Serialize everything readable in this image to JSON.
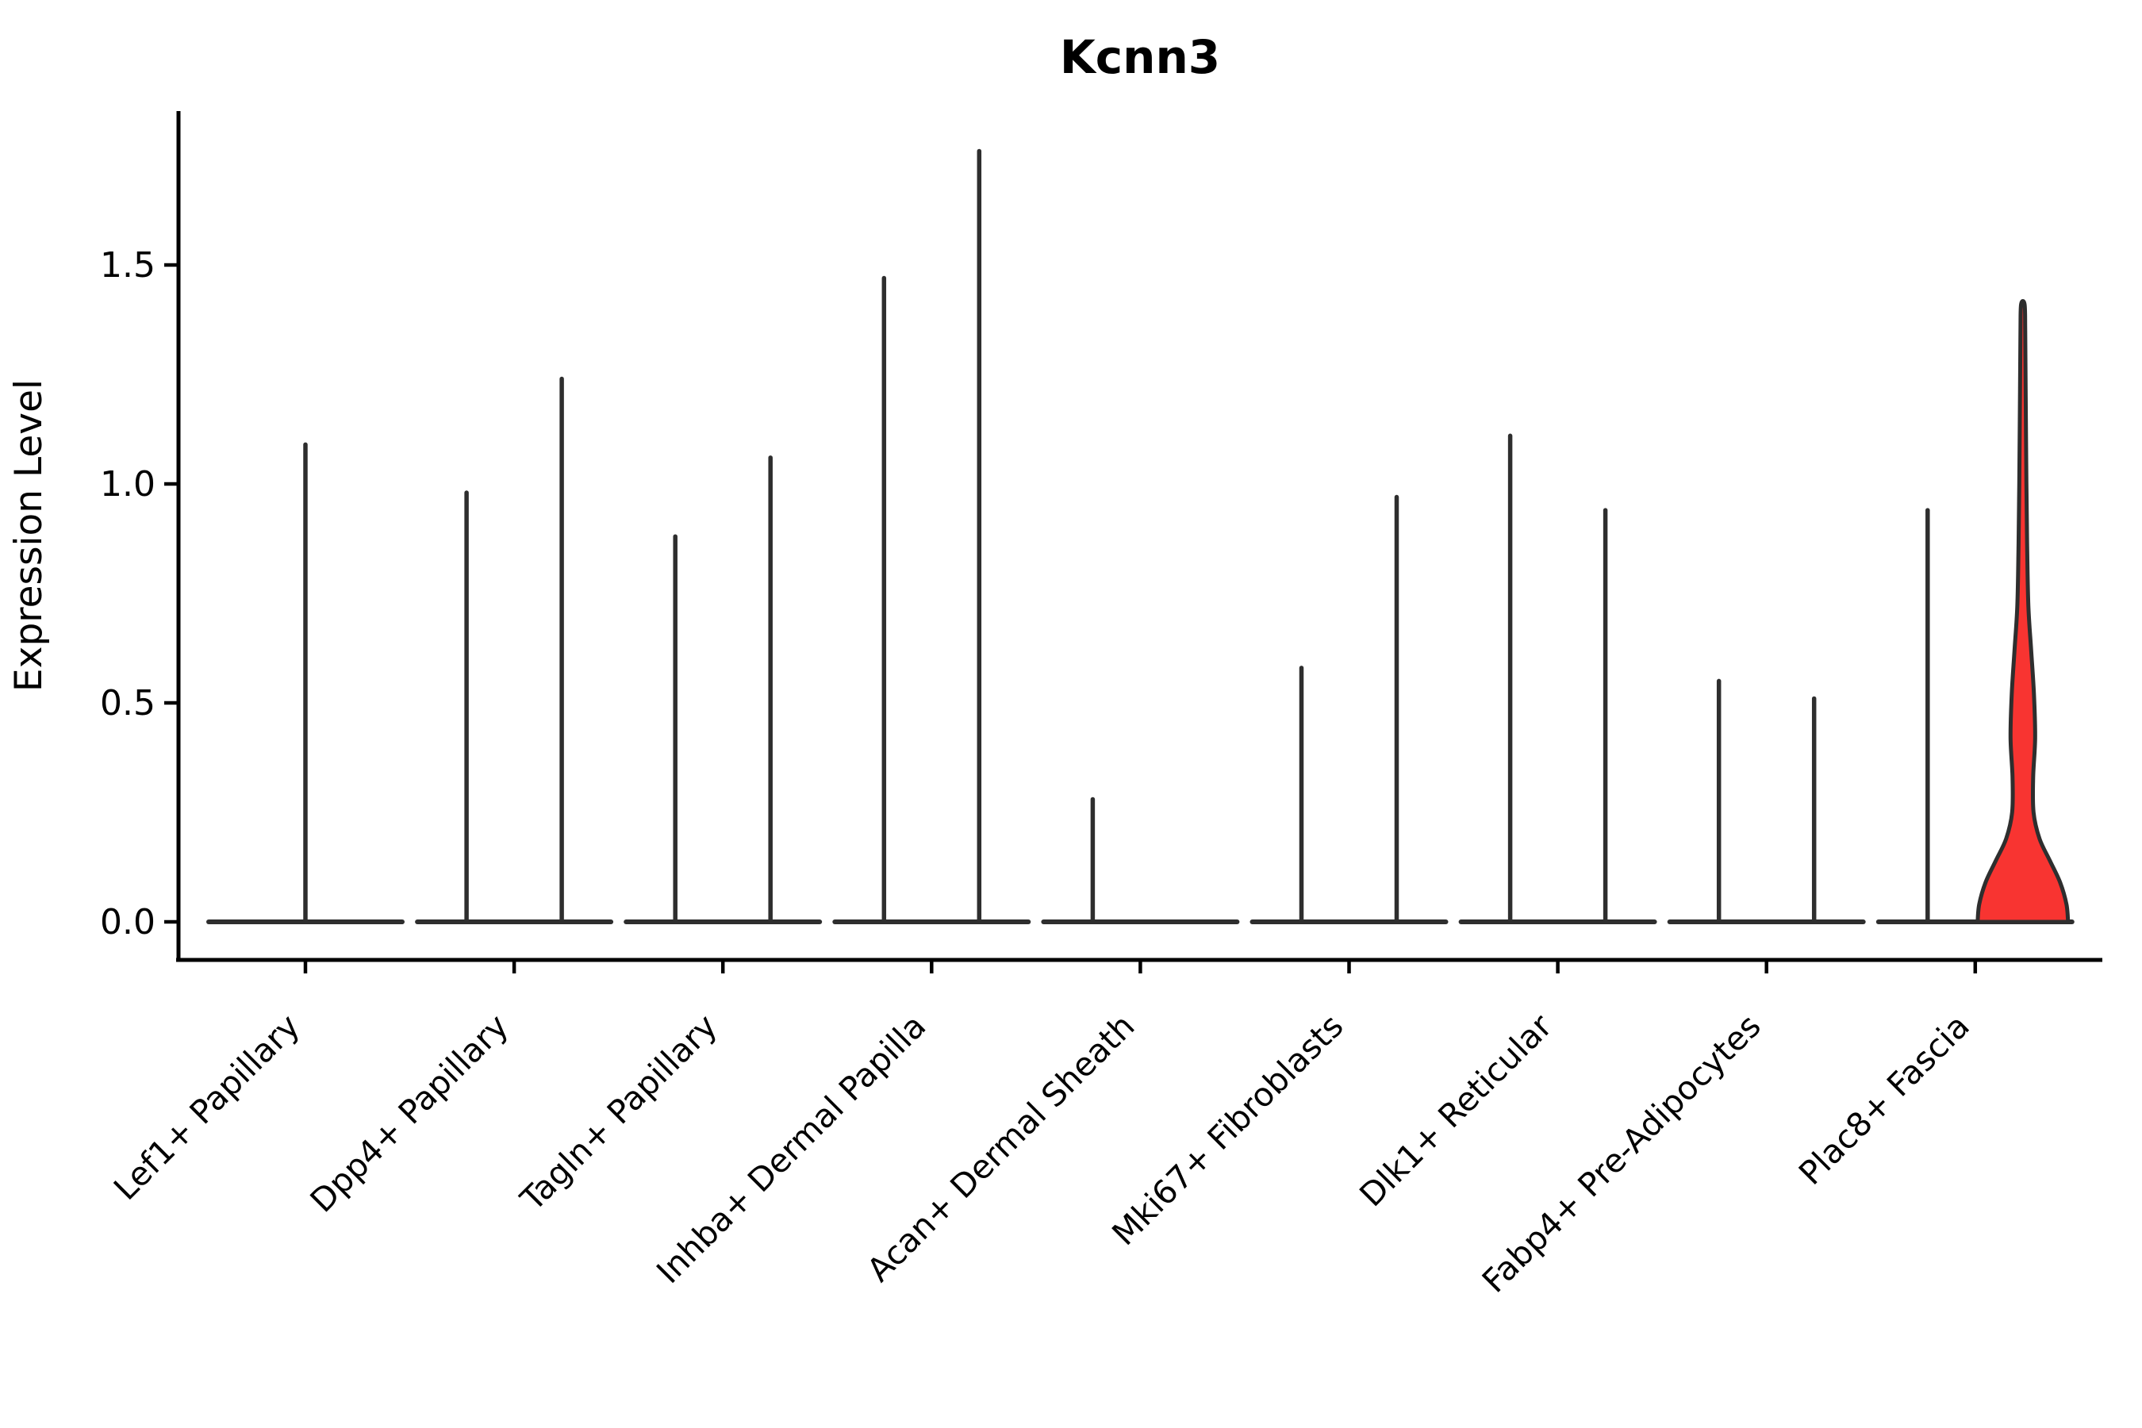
{
  "figure": {
    "title": "Kcnn3",
    "y_axis": {
      "label": "Expression Level",
      "tick_labels": [
        "0.0",
        "0.5",
        "1.0",
        "1.5"
      ]
    },
    "x_axis": {
      "tick_labels": [
        "Lef1+ Papillary",
        "Dpp4+ Papillary",
        "Tagln+ Papillary",
        "Inhba+ Dermal Papilla",
        "Acan+ Dermal Sheath",
        "Mki67+ Fibroblasts",
        "Dlk1+ Reticular",
        "Fabp4+ Pre-Adipocytes",
        "Plac8+ Fascia"
      ]
    }
  },
  "colors": {
    "violin_edge": "#2e2e2e",
    "highlight_fill": "#f83431",
    "axis": "#000000",
    "background": "#ffffff"
  },
  "chart_data": {
    "type": "violin",
    "title": "Kcnn3",
    "xlabel": "",
    "ylabel": "Expression Level",
    "ylim": [
      -0.09,
      1.85
    ],
    "yticks": [
      0.0,
      0.5,
      1.0,
      1.5
    ],
    "ytick_labels": [
      "0.0",
      "0.5",
      "1.0",
      "1.5"
    ],
    "grid": false,
    "legend": "none",
    "categories": [
      "Lef1+ Papillary",
      "Dpp4+ Papillary",
      "Tagln+ Papillary",
      "Inhba+ Dermal Papilla",
      "Acan+ Dermal Sheath",
      "Mki67+ Fibroblasts",
      "Dlk1+ Reticular",
      "Fabp4+ Pre-Adipocytes",
      "Plac8+ Fascia"
    ],
    "violins": [
      {
        "category": "Lef1+ Papillary",
        "position": "center",
        "max_expression": 1.09,
        "filled": false
      },
      {
        "category": "Dpp4+ Papillary",
        "position": "left",
        "max_expression": 0.98,
        "filled": false
      },
      {
        "category": "Dpp4+ Papillary",
        "position": "right",
        "max_expression": 1.24,
        "filled": false
      },
      {
        "category": "Tagln+ Papillary",
        "position": "left",
        "max_expression": 0.88,
        "filled": false
      },
      {
        "category": "Tagln+ Papillary",
        "position": "right",
        "max_expression": 1.06,
        "filled": false
      },
      {
        "category": "Inhba+ Dermal Papilla",
        "position": "left",
        "max_expression": 1.47,
        "filled": false
      },
      {
        "category": "Inhba+ Dermal Papilla",
        "position": "right",
        "max_expression": 1.76,
        "filled": false
      },
      {
        "category": "Acan+ Dermal Sheath",
        "position": "left",
        "max_expression": 0.28,
        "filled": false
      },
      {
        "category": "Acan+ Dermal Sheath",
        "position": "right",
        "max_expression": 0.0,
        "filled": false
      },
      {
        "category": "Mki67+ Fibroblasts",
        "position": "left",
        "max_expression": 0.58,
        "filled": false
      },
      {
        "category": "Mki67+ Fibroblasts",
        "position": "right",
        "max_expression": 0.97,
        "filled": false
      },
      {
        "category": "Dlk1+ Reticular",
        "position": "left",
        "max_expression": 1.11,
        "filled": false
      },
      {
        "category": "Dlk1+ Reticular",
        "position": "right",
        "max_expression": 0.94,
        "filled": false
      },
      {
        "category": "Fabp4+ Pre-Adipocytes",
        "position": "left",
        "max_expression": 0.55,
        "filled": false
      },
      {
        "category": "Fabp4+ Pre-Adipocytes",
        "position": "right",
        "max_expression": 0.51,
        "filled": false
      },
      {
        "category": "Plac8+ Fascia",
        "position": "left",
        "max_expression": 0.94,
        "filled": false
      },
      {
        "category": "Plac8+ Fascia",
        "position": "right",
        "max_expression": 1.41,
        "filled": true,
        "fill_color": "#f83431",
        "density_profile": [
          [
            0.0,
            57
          ],
          [
            0.04,
            55
          ],
          [
            0.09,
            47
          ],
          [
            0.14,
            34
          ],
          [
            0.19,
            21
          ],
          [
            0.25,
            13.5
          ],
          [
            0.33,
            13
          ],
          [
            0.42,
            15.5
          ],
          [
            0.52,
            14
          ],
          [
            0.62,
            10.5
          ],
          [
            0.72,
            7
          ],
          [
            0.85,
            5.5
          ],
          [
            1.0,
            4.5
          ],
          [
            1.2,
            3.6
          ],
          [
            1.35,
            3.0
          ],
          [
            1.41,
            2.2
          ]
        ]
      }
    ]
  }
}
